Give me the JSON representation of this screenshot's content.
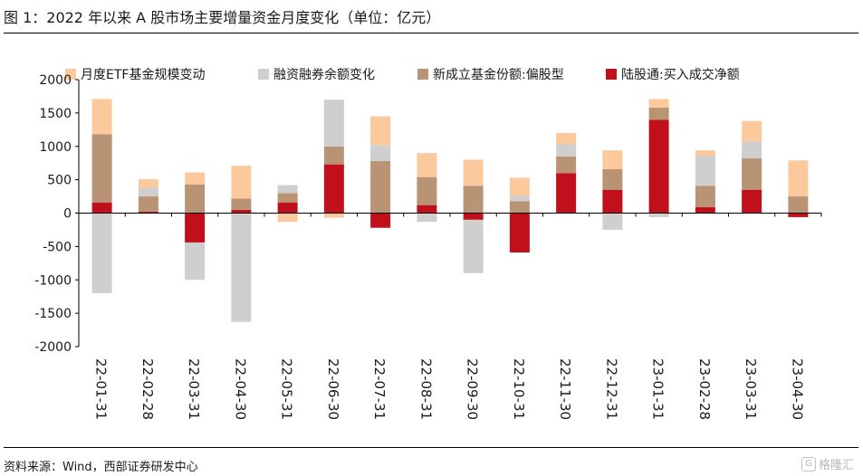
{
  "title": "图 1：2022 年以来 A 股市场主要增量资金月度变化（单位：亿元）",
  "source": "资料来源：Wind，西部证券研发中心",
  "watermark": "格隆汇",
  "colors": {
    "etf": "#fbc99c",
    "margin": "#cfcfcf",
    "fund": "#b89474",
    "north": "#c0101c"
  },
  "chart_data": {
    "type": "bar",
    "stacked": true,
    "categories": [
      "22-01-31",
      "22-02-28",
      "22-03-31",
      "22-04-30",
      "22-05-31",
      "22-06-30",
      "22-07-31",
      "22-08-31",
      "22-09-30",
      "22-10-31",
      "22-11-30",
      "22-12-31",
      "23-01-31",
      "23-02-28",
      "23-03-31",
      "23-04-30"
    ],
    "series": [
      {
        "name": "月度ETF基金规模变动",
        "color": "#fbc99c",
        "values": [
          530,
          130,
          180,
          490,
          -130,
          -70,
          430,
          360,
          390,
          270,
          170,
          280,
          130,
          80,
          310,
          540
        ]
      },
      {
        "name": "融资融券余额变化",
        "color": "#cfcfcf",
        "values": [
          -1200,
          130,
          -560,
          -1630,
          120,
          700,
          240,
          -130,
          -800,
          80,
          180,
          -250,
          -60,
          450,
          250,
          0
        ]
      },
      {
        "name": "新成立基金份额:偏股型",
        "color": "#b89474",
        "values": [
          1020,
          230,
          430,
          170,
          140,
          270,
          780,
          420,
          410,
          180,
          250,
          310,
          180,
          320,
          470,
          250
        ]
      },
      {
        "name": "陆股通:买入成交净额",
        "color": "#c0101c",
        "values": [
          160,
          20,
          -440,
          50,
          160,
          730,
          -220,
          120,
          -100,
          -590,
          600,
          350,
          1400,
          90,
          350,
          -60
        ]
      }
    ],
    "ylim": [
      -2000,
      2000
    ],
    "yticks": [
      "2000",
      "1500",
      "1000",
      "500",
      "0",
      "-500",
      "-1000",
      "-1500",
      "-2000"
    ],
    "legend": "top",
    "grid": false
  }
}
